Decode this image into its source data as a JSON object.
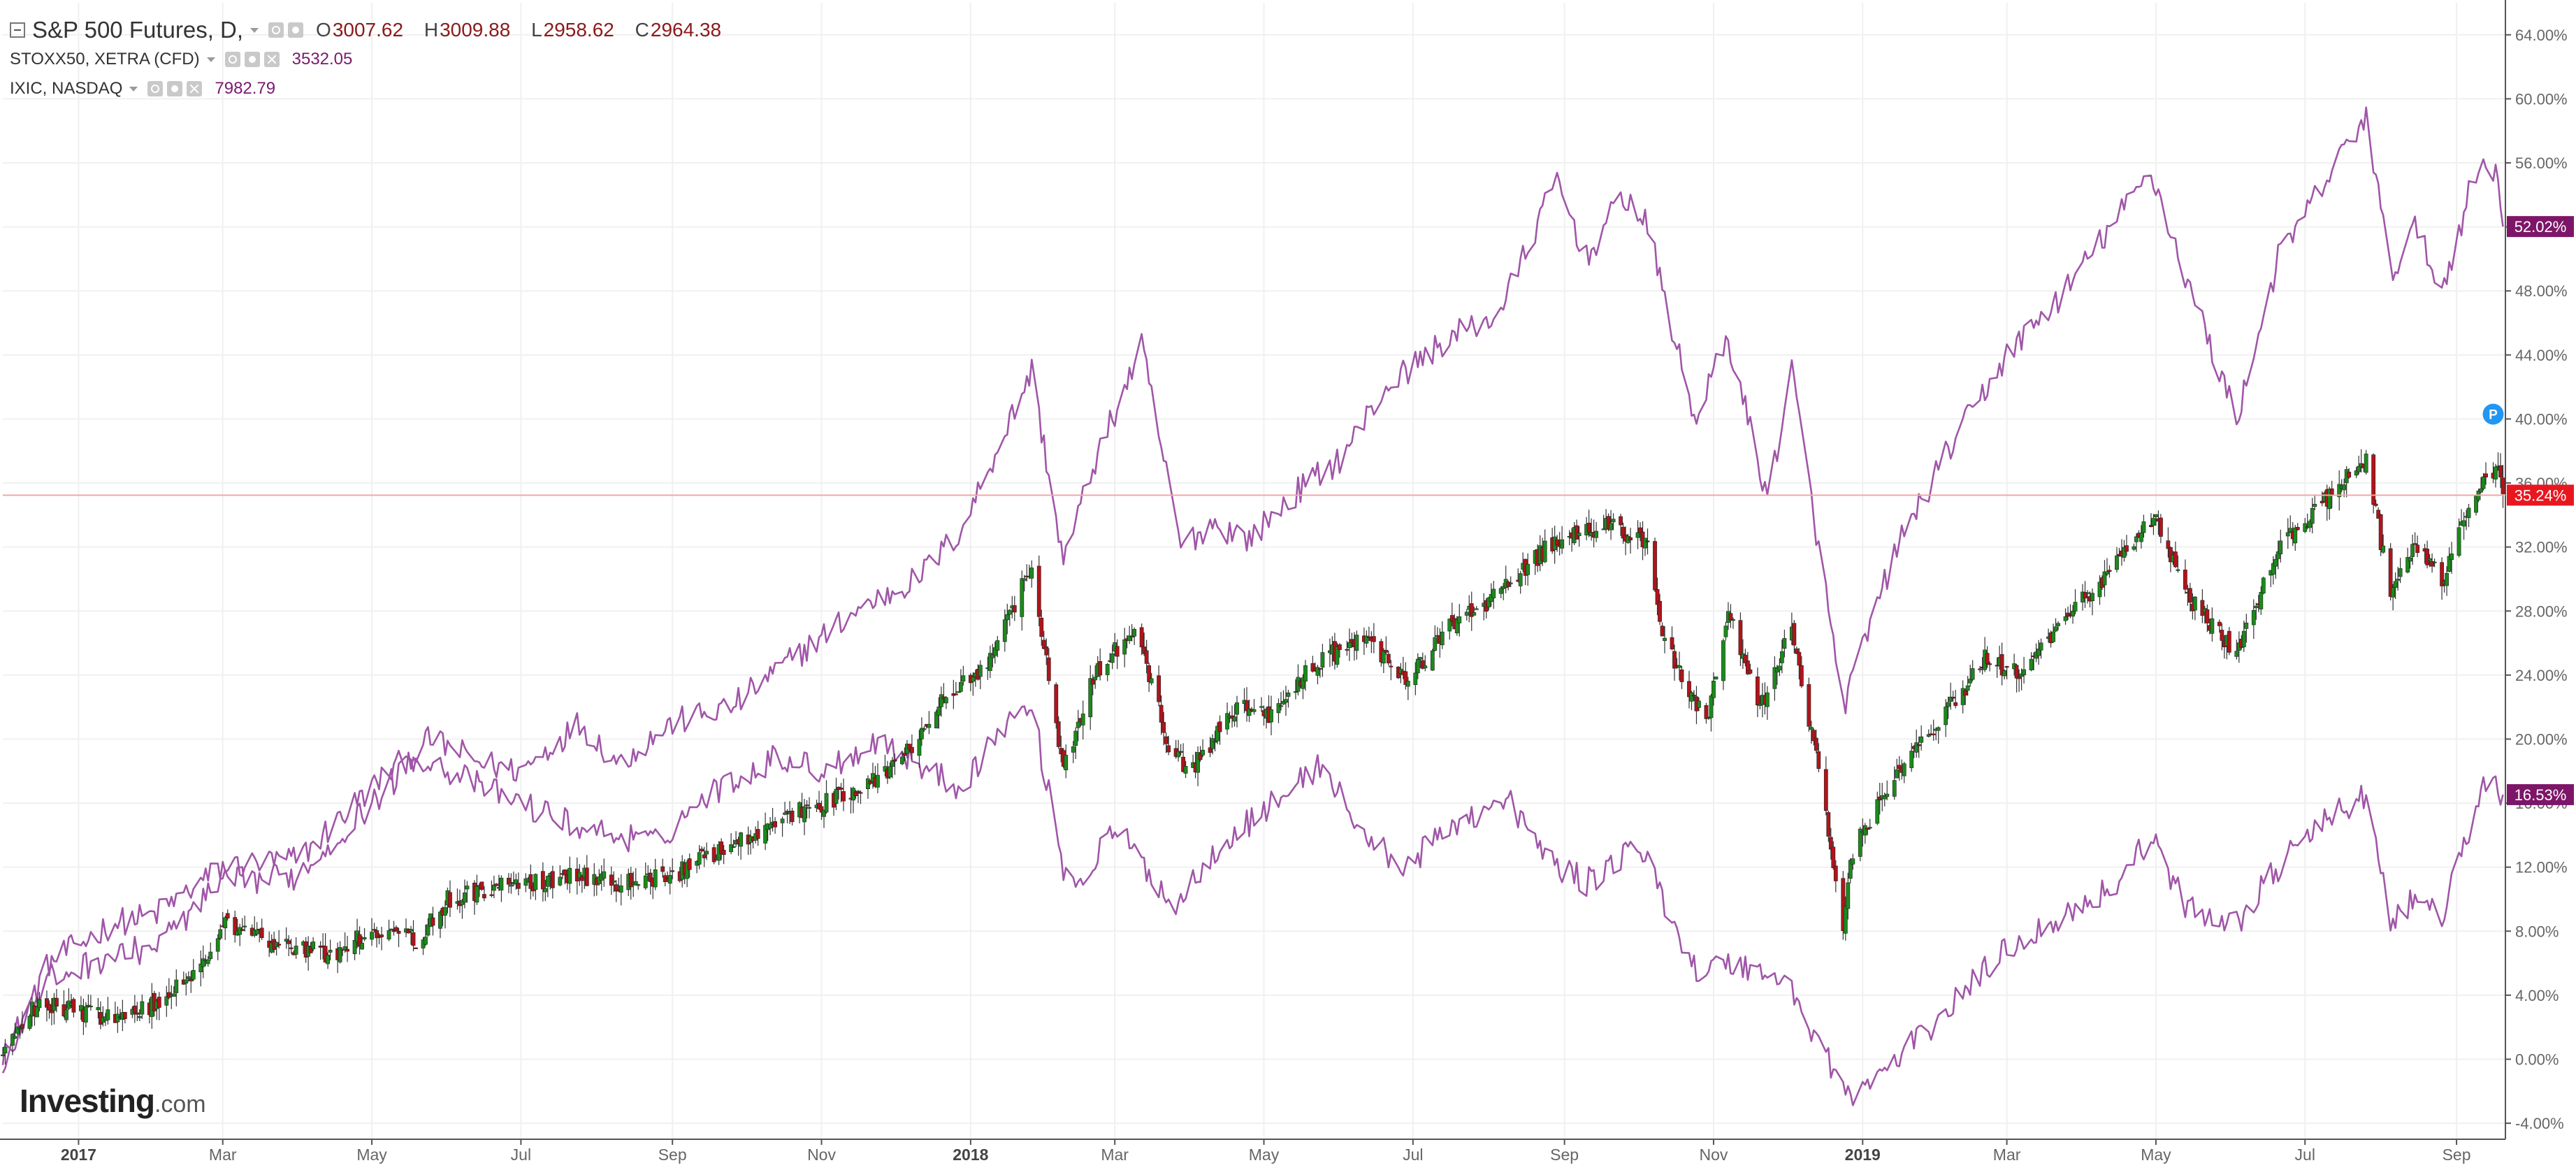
{
  "legend": {
    "main": {
      "title": "S&P 500 Futures, D,",
      "open_label": "O",
      "open": "3007.62",
      "high_label": "H",
      "high": "3009.88",
      "low_label": "L",
      "low": "2958.62",
      "close_label": "C",
      "close": "2964.38"
    },
    "stoxx": {
      "title": "STOXX50, XETRA (CFD)",
      "value": "3532.05"
    },
    "ixic": {
      "title": "IXIC, NASDAQ",
      "value": "7982.79"
    }
  },
  "logo": {
    "brand": "Investing",
    "domain": ".com"
  },
  "colors": {
    "compare": "#a056a8",
    "candle_up": "#1b8a1b",
    "candle_down": "#b0141a",
    "price_line": "#f3a6a6",
    "grid": "#f0f0f0",
    "axis_text": "#666666",
    "badge_red": "#e8171f",
    "badge_purple": "#7d1668",
    "p_marker": "#2196f3"
  },
  "p_marker": "P",
  "chart_data": {
    "type": "candlestick-comparison",
    "y_unit": "% change",
    "ylim": [
      -5,
      66
    ],
    "y_ticks": [
      -4,
      0,
      4,
      8,
      12,
      16,
      20,
      24,
      28,
      32,
      36,
      40,
      44,
      48,
      52,
      56,
      60,
      64
    ],
    "y_tick_labels": [
      "-4.00%",
      "0.00%",
      "4.00%",
      "8.00%",
      "12.00%",
      "16.00%",
      "20.00%",
      "24.00%",
      "28.00%",
      "32.00%",
      "36.00%",
      "40.00%",
      "44.00%",
      "48.00%",
      "52.00%",
      "56.00%",
      "60.00%",
      "64.00%"
    ],
    "x_range": [
      "2016-12-01",
      "2019-09-21"
    ],
    "x_ticks": [
      {
        "date": "2017-01-01",
        "label": "2017",
        "bold": true
      },
      {
        "date": "2017-03-01",
        "label": "Mar",
        "bold": false
      },
      {
        "date": "2017-05-01",
        "label": "May",
        "bold": false
      },
      {
        "date": "2017-07-01",
        "label": "Jul",
        "bold": false
      },
      {
        "date": "2017-09-01",
        "label": "Sep",
        "bold": false
      },
      {
        "date": "2017-11-01",
        "label": "Nov",
        "bold": false
      },
      {
        "date": "2018-01-01",
        "label": "2018",
        "bold": true
      },
      {
        "date": "2018-03-01",
        "label": "Mar",
        "bold": false
      },
      {
        "date": "2018-05-01",
        "label": "May",
        "bold": false
      },
      {
        "date": "2018-07-01",
        "label": "Jul",
        "bold": false
      },
      {
        "date": "2018-09-01",
        "label": "Sep",
        "bold": false
      },
      {
        "date": "2018-11-01",
        "label": "Nov",
        "bold": false
      },
      {
        "date": "2019-01-01",
        "label": "2019",
        "bold": true
      },
      {
        "date": "2019-03-01",
        "label": "Mar",
        "bold": false
      },
      {
        "date": "2019-05-01",
        "label": "May",
        "bold": false
      },
      {
        "date": "2019-07-01",
        "label": "Jul",
        "bold": false
      },
      {
        "date": "2019-09-01",
        "label": "Sep",
        "bold": false
      }
    ],
    "series": [
      {
        "name": "S&P 500 Futures",
        "kind": "candlestick",
        "points": [
          [
            "2016-12-01",
            0
          ],
          [
            "2016-12-15",
            3.5
          ],
          [
            "2017-01-01",
            3.0
          ],
          [
            "2017-01-20",
            2.5
          ],
          [
            "2017-02-01",
            3.5
          ],
          [
            "2017-02-20",
            5.5
          ],
          [
            "2017-03-01",
            8.5
          ],
          [
            "2017-03-20",
            7.5
          ],
          [
            "2017-04-15",
            6.5
          ],
          [
            "2017-05-01",
            8.0
          ],
          [
            "2017-05-20",
            7.5
          ],
          [
            "2017-06-01",
            10.0
          ],
          [
            "2017-07-01",
            11.0
          ],
          [
            "2017-07-25",
            11.5
          ],
          [
            "2017-08-10",
            11.0
          ],
          [
            "2017-09-01",
            11.5
          ],
          [
            "2017-09-20",
            13.0
          ],
          [
            "2017-10-15",
            15.0
          ],
          [
            "2017-11-01",
            16.0
          ],
          [
            "2017-11-20",
            17.0
          ],
          [
            "2017-12-05",
            19.0
          ],
          [
            "2017-12-20",
            22.5
          ],
          [
            "2018-01-10",
            25.0
          ],
          [
            "2018-01-26",
            31.0
          ],
          [
            "2018-02-08",
            18.0
          ],
          [
            "2018-02-20",
            24.0
          ],
          [
            "2018-03-10",
            27.0
          ],
          [
            "2018-03-23",
            19.5
          ],
          [
            "2018-04-01",
            18.0
          ],
          [
            "2018-04-20",
            22.0
          ],
          [
            "2018-05-05",
            21.5
          ],
          [
            "2018-05-20",
            24.5
          ],
          [
            "2018-06-10",
            26.5
          ],
          [
            "2018-06-28",
            23.5
          ],
          [
            "2018-07-15",
            27.0
          ],
          [
            "2018-08-05",
            29.0
          ],
          [
            "2018-08-25",
            32.0
          ],
          [
            "2018-09-20",
            33.5
          ],
          [
            "2018-10-05",
            32.0
          ],
          [
            "2018-10-12",
            26.0
          ],
          [
            "2018-10-29",
            21.0
          ],
          [
            "2018-11-07",
            28.0
          ],
          [
            "2018-11-20",
            22.0
          ],
          [
            "2018-12-03",
            27.0
          ],
          [
            "2018-12-14",
            18.0
          ],
          [
            "2018-12-24",
            8.5
          ],
          [
            "2018-12-28",
            13.0
          ],
          [
            "2019-01-15",
            18.0
          ],
          [
            "2019-02-01",
            21.0
          ],
          [
            "2019-02-20",
            25.0
          ],
          [
            "2019-03-08",
            24.0
          ],
          [
            "2019-03-25",
            27.5
          ],
          [
            "2019-04-15",
            31.0
          ],
          [
            "2019-04-30",
            34.0
          ],
          [
            "2019-05-13",
            29.0
          ],
          [
            "2019-06-03",
            25.5
          ],
          [
            "2019-06-20",
            32.0
          ],
          [
            "2019-07-10",
            35.0
          ],
          [
            "2019-07-26",
            37.5
          ],
          [
            "2019-08-05",
            29.0
          ],
          [
            "2019-08-15",
            32.0
          ],
          [
            "2019-08-26",
            30.0
          ],
          [
            "2019-09-05",
            34.0
          ],
          [
            "2019-09-12",
            36.5
          ],
          [
            "2019-09-18",
            37.0
          ],
          [
            "2019-09-20",
            35.24
          ]
        ],
        "last": 35.24,
        "last_label": "35.24%"
      },
      {
        "name": "IXIC, NASDAQ",
        "kind": "line",
        "points": [
          [
            "2016-12-01",
            0
          ],
          [
            "2016-12-20",
            6.0
          ],
          [
            "2017-01-15",
            8.5
          ],
          [
            "2017-02-01",
            9.0
          ],
          [
            "2017-03-01",
            12.0
          ],
          [
            "2017-04-01",
            12.5
          ],
          [
            "2017-05-01",
            17.0
          ],
          [
            "2017-05-25",
            20.0
          ],
          [
            "2017-06-15",
            18.5
          ],
          [
            "2017-07-01",
            18.0
          ],
          [
            "2017-07-25",
            21.0
          ],
          [
            "2017-08-10",
            18.5
          ],
          [
            "2017-09-01",
            21.0
          ],
          [
            "2017-09-25",
            22.0
          ],
          [
            "2017-10-20",
            25.0
          ],
          [
            "2017-11-15",
            28.0
          ],
          [
            "2017-12-10",
            30.0
          ],
          [
            "2017-12-28",
            33.0
          ],
          [
            "2018-01-26",
            43.0
          ],
          [
            "2018-02-08",
            31.0
          ],
          [
            "2018-02-20",
            37.0
          ],
          [
            "2018-03-12",
            44.5
          ],
          [
            "2018-03-28",
            32.0
          ],
          [
            "2018-04-10",
            33.5
          ],
          [
            "2018-04-25",
            32.5
          ],
          [
            "2018-05-15",
            35.5
          ],
          [
            "2018-06-01",
            37.5
          ],
          [
            "2018-06-20",
            42.0
          ],
          [
            "2018-07-15",
            45.0
          ],
          [
            "2018-08-05",
            46.5
          ],
          [
            "2018-08-29",
            55.0
          ],
          [
            "2018-09-10",
            50.0
          ],
          [
            "2018-09-25",
            54.0
          ],
          [
            "2018-10-05",
            52.0
          ],
          [
            "2018-10-24",
            40.0
          ],
          [
            "2018-11-07",
            45.0
          ],
          [
            "2018-11-23",
            35.0
          ],
          [
            "2018-12-03",
            43.0
          ],
          [
            "2018-12-24",
            22.0
          ],
          [
            "2019-01-15",
            32.0
          ],
          [
            "2019-02-05",
            38.0
          ],
          [
            "2019-03-01",
            44.0
          ],
          [
            "2019-03-25",
            48.0
          ],
          [
            "2019-04-29",
            55.5
          ],
          [
            "2019-05-13",
            49.0
          ],
          [
            "2019-06-03",
            40.0
          ],
          [
            "2019-06-20",
            50.0
          ],
          [
            "2019-07-10",
            55.0
          ],
          [
            "2019-07-26",
            59.0
          ],
          [
            "2019-08-05",
            49.0
          ],
          [
            "2019-08-15",
            52.0
          ],
          [
            "2019-08-26",
            48.0
          ],
          [
            "2019-09-06",
            54.0
          ],
          [
            "2019-09-12",
            56.0
          ],
          [
            "2019-09-18",
            55.5
          ],
          [
            "2019-09-20",
            52.02
          ]
        ],
        "last": 52.02,
        "last_label": "52.02%"
      },
      {
        "name": "STOXX50, XETRA (CFD)",
        "kind": "line",
        "points": [
          [
            "2016-12-01",
            0
          ],
          [
            "2016-12-20",
            5.0
          ],
          [
            "2017-01-15",
            6.5
          ],
          [
            "2017-02-01",
            7.0
          ],
          [
            "2017-03-01",
            11.0
          ],
          [
            "2017-04-01",
            11.5
          ],
          [
            "2017-05-01",
            16.0
          ],
          [
            "2017-05-20",
            19.0
          ],
          [
            "2017-06-15",
            17.0
          ],
          [
            "2017-07-01",
            16.0
          ],
          [
            "2017-07-25",
            14.5
          ],
          [
            "2017-08-25",
            13.5
          ],
          [
            "2017-09-15",
            16.5
          ],
          [
            "2017-10-15",
            19.0
          ],
          [
            "2017-11-01",
            18.0
          ],
          [
            "2017-11-25",
            20.0
          ],
          [
            "2017-12-15",
            18.0
          ],
          [
            "2017-12-28",
            17.0
          ],
          [
            "2018-01-15",
            21.0
          ],
          [
            "2018-01-26",
            22.0
          ],
          [
            "2018-02-08",
            12.0
          ],
          [
            "2018-02-15",
            11.0
          ],
          [
            "2018-03-01",
            14.5
          ],
          [
            "2018-03-26",
            9.5
          ],
          [
            "2018-04-10",
            13.0
          ],
          [
            "2018-05-05",
            16.0
          ],
          [
            "2018-05-25",
            18.5
          ],
          [
            "2018-06-10",
            14.0
          ],
          [
            "2018-06-28",
            12.0
          ],
          [
            "2018-07-20",
            15.0
          ],
          [
            "2018-08-10",
            16.0
          ],
          [
            "2018-08-25",
            12.5
          ],
          [
            "2018-09-10",
            11.0
          ],
          [
            "2018-10-01",
            13.5
          ],
          [
            "2018-10-25",
            5.5
          ],
          [
            "2018-11-10",
            6.0
          ],
          [
            "2018-11-30",
            5.0
          ],
          [
            "2018-12-27",
            -2.5
          ],
          [
            "2019-01-15",
            0.0
          ],
          [
            "2019-02-01",
            2.5
          ],
          [
            "2019-03-01",
            7.0
          ],
          [
            "2019-03-25",
            9.0
          ],
          [
            "2019-04-15",
            11.0
          ],
          [
            "2019-04-29",
            14.0
          ],
          [
            "2019-05-13",
            9.5
          ],
          [
            "2019-06-03",
            8.5
          ],
          [
            "2019-06-20",
            12.0
          ],
          [
            "2019-07-10",
            15.0
          ],
          [
            "2019-07-26",
            16.5
          ],
          [
            "2019-08-05",
            8.5
          ],
          [
            "2019-08-15",
            10.0
          ],
          [
            "2019-08-26",
            9.0
          ],
          [
            "2019-09-06",
            14.0
          ],
          [
            "2019-09-12",
            17.5
          ],
          [
            "2019-09-20",
            16.53
          ]
        ],
        "last": 16.53,
        "last_label": "16.53%"
      }
    ]
  }
}
